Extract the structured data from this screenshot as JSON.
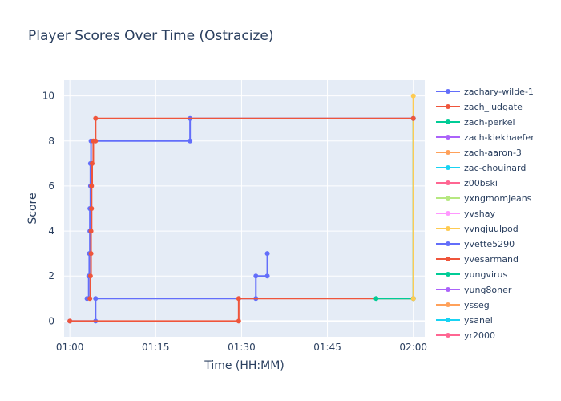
{
  "chart_data": {
    "type": "line",
    "title": "Player Scores Over Time (Ostracize)",
    "xlabel": "Time (HH:MM)",
    "ylabel": "Score",
    "x_tick_labels": [
      "01:00",
      "01:15",
      "01:30",
      "01:45",
      "02:00"
    ],
    "x_tick_minutes": [
      0,
      15,
      30,
      45,
      60
    ],
    "y_ticks": [
      0,
      2,
      4,
      6,
      8,
      10
    ],
    "xlim_minutes": [
      -1,
      62
    ],
    "ylim": [
      -0.7,
      10.7
    ],
    "grid": true,
    "legend_position": "right",
    "line_shape": "step",
    "series": [
      {
        "name": "zachary-wilde-1",
        "color": "#636efa",
        "points": [
          [
            0,
            0
          ],
          [
            4.5,
            0
          ],
          [
            4.5,
            1
          ],
          [
            32.5,
            1
          ],
          [
            32.5,
            2
          ],
          [
            34.5,
            2
          ],
          [
            34.5,
            3
          ]
        ]
      },
      {
        "name": "zach_ludgate",
        "color": "#EF553B",
        "points": [
          [
            0,
            0
          ],
          [
            29.5,
            0
          ],
          [
            29.5,
            1
          ],
          [
            60,
            1
          ]
        ]
      },
      {
        "name": "zach-perkel",
        "color": "#00cc96",
        "points": [
          [
            53.5,
            1
          ],
          [
            60,
            1
          ],
          [
            60,
            9
          ]
        ]
      },
      {
        "name": "zach-kiekhaefer",
        "color": "#ab63fa",
        "points": []
      },
      {
        "name": "zach-aaron-3",
        "color": "#FFA15A",
        "points": []
      },
      {
        "name": "zac-chouinard",
        "color": "#19d3f3",
        "points": []
      },
      {
        "name": "z00bski",
        "color": "#FF6692",
        "points": []
      },
      {
        "name": "yxngmomjeans",
        "color": "#B6E880",
        "points": []
      },
      {
        "name": "yvshay",
        "color": "#FF97FF",
        "points": []
      },
      {
        "name": "yvngjuulpod",
        "color": "#FECB52",
        "points": [
          [
            60,
            1
          ],
          [
            60,
            10
          ]
        ]
      },
      {
        "name": "yvette5290",
        "color": "#636efa",
        "points": [
          [
            3,
            1
          ],
          [
            3.3,
            2
          ],
          [
            3.4,
            3
          ],
          [
            3.5,
            4
          ],
          [
            3.5,
            5
          ],
          [
            3.6,
            6
          ],
          [
            3.6,
            7
          ],
          [
            3.7,
            8
          ],
          [
            21,
            8
          ],
          [
            21,
            9
          ],
          [
            60,
            9
          ]
        ]
      },
      {
        "name": "yvesarmand",
        "color": "#EF553B",
        "points": [
          [
            3.5,
            1
          ],
          [
            3.6,
            2
          ],
          [
            3.7,
            3
          ],
          [
            3.7,
            4
          ],
          [
            3.8,
            5
          ],
          [
            3.8,
            6
          ],
          [
            3.9,
            7
          ],
          [
            4.1,
            8
          ],
          [
            4.5,
            8
          ],
          [
            4.5,
            9
          ],
          [
            60,
            9
          ]
        ]
      },
      {
        "name": "yungvirus",
        "color": "#00cc96",
        "points": []
      },
      {
        "name": "yung8oner",
        "color": "#ab63fa",
        "points": []
      },
      {
        "name": "ysseg",
        "color": "#FFA15A",
        "points": []
      },
      {
        "name": "ysanel",
        "color": "#19d3f3",
        "points": []
      },
      {
        "name": "yr2000",
        "color": "#FF6692",
        "points": []
      }
    ]
  }
}
